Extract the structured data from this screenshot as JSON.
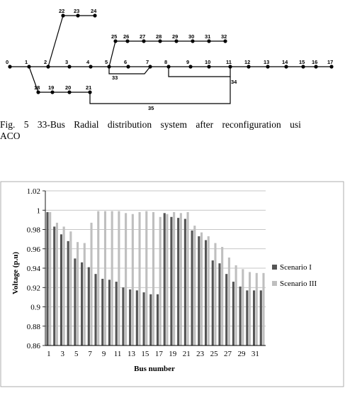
{
  "diagram": {
    "nodes": [
      "0",
      "1",
      "2",
      "3",
      "4",
      "5",
      "6",
      "7",
      "8",
      "9",
      "10",
      "11",
      "12",
      "13",
      "14",
      "15",
      "16",
      "17",
      "18",
      "19",
      "20",
      "21",
      "22",
      "23",
      "24",
      "25",
      "26",
      "27",
      "28",
      "29",
      "30",
      "31",
      "32"
    ],
    "loops": [
      "33",
      "34",
      "35"
    ]
  },
  "caption": {
    "line1": "Fig. 5 33-Bus Radial distribution system after reconfiguration usi",
    "line2": "ACO"
  },
  "chart_data": {
    "type": "bar",
    "xlabel": "Bus number",
    "ylabel": "Voltage (p.u)",
    "ylim": [
      0.86,
      1.02
    ],
    "yticks": [
      "0.86",
      "0.88",
      "0.9",
      "0.92",
      "0.94",
      "0.96",
      "0.98",
      "1",
      "1.02"
    ],
    "ytick_values": [
      0.86,
      0.88,
      0.9,
      0.92,
      0.94,
      0.96,
      0.98,
      1.0,
      1.02
    ],
    "categories": [
      "1",
      "2",
      "3",
      "4",
      "5",
      "6",
      "7",
      "8",
      "9",
      "10",
      "11",
      "12",
      "13",
      "14",
      "15",
      "16",
      "17",
      "18",
      "19",
      "20",
      "21",
      "22",
      "23",
      "24",
      "25",
      "26",
      "27",
      "28",
      "29",
      "30",
      "31",
      "32"
    ],
    "xtick_labels": [
      "1",
      "3",
      "5",
      "7",
      "9",
      "11",
      "13",
      "15",
      "17",
      "19",
      "21",
      "23",
      "25",
      "27",
      "29",
      "31"
    ],
    "legend_position": "right",
    "series": [
      {
        "name": "Scenario I",
        "color": "#555555",
        "values": [
          0.998,
          0.983,
          0.975,
          0.968,
          0.95,
          0.946,
          0.941,
          0.934,
          0.929,
          0.928,
          0.926,
          0.92,
          0.918,
          0.917,
          0.915,
          0.913,
          0.913,
          0.997,
          0.993,
          0.992,
          0.991,
          0.979,
          0.973,
          0.969,
          0.948,
          0.945,
          0.934,
          0.926,
          0.921,
          0.917,
          0.917,
          0.917
        ]
      },
      {
        "name": "Scenario III",
        "color": "#bfbfbf",
        "values": [
          0.998,
          0.987,
          0.983,
          0.978,
          0.967,
          0.966,
          0.987,
          0.999,
          0.999,
          0.999,
          0.999,
          0.997,
          0.996,
          0.998,
          0.999,
          0.998,
          0.993,
          0.996,
          0.998,
          0.997,
          0.998,
          0.984,
          0.977,
          0.973,
          0.966,
          0.962,
          0.951,
          0.943,
          0.939,
          0.936,
          0.935,
          0.935
        ]
      }
    ]
  }
}
